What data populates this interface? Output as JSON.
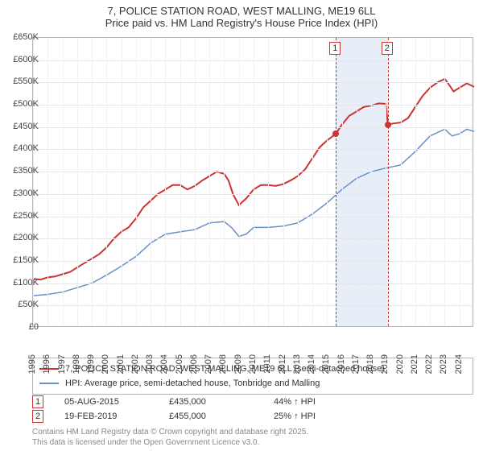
{
  "title": {
    "line1": "7, POLICE STATION ROAD, WEST MALLING, ME19 6LL",
    "line2": "Price paid vs. HM Land Registry's House Price Index (HPI)"
  },
  "chart": {
    "type": "line",
    "background_color": "#ffffff",
    "grid_color": "#e6e6e6",
    "vgrid_color": "#f0f0f0",
    "border_color": "#b5b5b5",
    "x_years": [
      1995,
      1996,
      1997,
      1998,
      1999,
      2000,
      2001,
      2002,
      2003,
      2004,
      2005,
      2006,
      2007,
      2008,
      2009,
      2010,
      2011,
      2012,
      2013,
      2014,
      2015,
      2016,
      2017,
      2018,
      2019,
      2020,
      2021,
      2022,
      2023,
      2024
    ],
    "x_min": 1995,
    "x_max": 2025,
    "ylim": [
      0,
      650000
    ],
    "ytick_step": 50000,
    "y_prefix": "£",
    "y_suffix_k": "K",
    "highlight_band": {
      "start": 2015.6,
      "end": 2019.13,
      "fill": "#e8eef8",
      "edge": "#cc3333"
    },
    "marker_labels": [
      "1",
      "2"
    ],
    "series": [
      {
        "name": "price_paid",
        "color": "#cc3333",
        "width": 2,
        "legend": "7, POLICE STATION ROAD, WEST MALLING, ME19 6LL (semi-detached house)",
        "points": [
          [
            1995.0,
            110000
          ],
          [
            1995.5,
            108000
          ],
          [
            1996.0,
            113000
          ],
          [
            1996.5,
            115000
          ],
          [
            1997.0,
            120000
          ],
          [
            1997.5,
            125000
          ],
          [
            1998.0,
            135000
          ],
          [
            1998.5,
            145000
          ],
          [
            1999.0,
            155000
          ],
          [
            1999.5,
            165000
          ],
          [
            2000.0,
            180000
          ],
          [
            2000.5,
            200000
          ],
          [
            2001.0,
            215000
          ],
          [
            2001.5,
            225000
          ],
          [
            2002.0,
            245000
          ],
          [
            2002.5,
            270000
          ],
          [
            2003.0,
            285000
          ],
          [
            2003.5,
            300000
          ],
          [
            2004.0,
            310000
          ],
          [
            2004.5,
            320000
          ],
          [
            2005.0,
            320000
          ],
          [
            2005.5,
            310000
          ],
          [
            2006.0,
            318000
          ],
          [
            2006.5,
            330000
          ],
          [
            2007.0,
            340000
          ],
          [
            2007.5,
            350000
          ],
          [
            2008.0,
            345000
          ],
          [
            2008.3,
            330000
          ],
          [
            2008.6,
            300000
          ],
          [
            2009.0,
            275000
          ],
          [
            2009.5,
            290000
          ],
          [
            2010.0,
            310000
          ],
          [
            2010.5,
            320000
          ],
          [
            2011.0,
            320000
          ],
          [
            2011.5,
            318000
          ],
          [
            2012.0,
            322000
          ],
          [
            2012.5,
            330000
          ],
          [
            2013.0,
            340000
          ],
          [
            2013.5,
            355000
          ],
          [
            2014.0,
            380000
          ],
          [
            2014.5,
            405000
          ],
          [
            2015.0,
            420000
          ],
          [
            2015.6,
            435000
          ],
          [
            2016.0,
            455000
          ],
          [
            2016.5,
            475000
          ],
          [
            2017.0,
            485000
          ],
          [
            2017.5,
            495000
          ],
          [
            2018.0,
            498000
          ],
          [
            2018.5,
            503000
          ],
          [
            2019.0,
            502000
          ],
          [
            2019.13,
            455000
          ],
          [
            2019.5,
            458000
          ],
          [
            2020.0,
            460000
          ],
          [
            2020.5,
            470000
          ],
          [
            2021.0,
            495000
          ],
          [
            2021.5,
            520000
          ],
          [
            2022.0,
            538000
          ],
          [
            2022.5,
            550000
          ],
          [
            2023.0,
            558000
          ],
          [
            2023.3,
            545000
          ],
          [
            2023.6,
            530000
          ],
          [
            2024.0,
            538000
          ],
          [
            2024.5,
            548000
          ],
          [
            2025.0,
            540000
          ]
        ]
      },
      {
        "name": "hpi",
        "color": "#6a8fc7",
        "width": 1.5,
        "legend": "HPI: Average price, semi-detached house, Tonbridge and Malling",
        "points": [
          [
            1995.0,
            72000
          ],
          [
            1996.0,
            75000
          ],
          [
            1997.0,
            80000
          ],
          [
            1998.0,
            90000
          ],
          [
            1999.0,
            100000
          ],
          [
            2000.0,
            118000
          ],
          [
            2001.0,
            138000
          ],
          [
            2002.0,
            160000
          ],
          [
            2003.0,
            190000
          ],
          [
            2004.0,
            210000
          ],
          [
            2005.0,
            215000
          ],
          [
            2006.0,
            220000
          ],
          [
            2007.0,
            235000
          ],
          [
            2008.0,
            238000
          ],
          [
            2008.5,
            225000
          ],
          [
            2009.0,
            205000
          ],
          [
            2009.5,
            210000
          ],
          [
            2010.0,
            225000
          ],
          [
            2011.0,
            225000
          ],
          [
            2012.0,
            228000
          ],
          [
            2013.0,
            235000
          ],
          [
            2014.0,
            255000
          ],
          [
            2015.0,
            280000
          ],
          [
            2016.0,
            310000
          ],
          [
            2017.0,
            335000
          ],
          [
            2018.0,
            350000
          ],
          [
            2019.0,
            358000
          ],
          [
            2020.0,
            365000
          ],
          [
            2021.0,
            395000
          ],
          [
            2022.0,
            430000
          ],
          [
            2023.0,
            445000
          ],
          [
            2023.5,
            430000
          ],
          [
            2024.0,
            435000
          ],
          [
            2024.5,
            445000
          ],
          [
            2025.0,
            440000
          ]
        ]
      }
    ],
    "sale_points": [
      {
        "x": 2015.6,
        "y": 435000,
        "color": "#cc3333"
      },
      {
        "x": 2019.13,
        "y": 455000,
        "color": "#cc3333"
      }
    ]
  },
  "legend": {
    "rows": [
      {
        "color": "#cc3333",
        "label_path": "chart.series.0.legend"
      },
      {
        "color": "#6a8fc7",
        "label_path": "chart.series.1.legend"
      }
    ]
  },
  "sales_table": {
    "rows": [
      {
        "num": "1",
        "date": "05-AUG-2015",
        "price": "£435,000",
        "pct": "44% ↑ HPI"
      },
      {
        "num": "2",
        "date": "19-FEB-2019",
        "price": "£455,000",
        "pct": "25% ↑ HPI"
      }
    ]
  },
  "attribution": {
    "line1": "Contains HM Land Registry data © Crown copyright and database right 2025.",
    "line2": "This data is licensed under the Open Government Licence v3.0."
  }
}
